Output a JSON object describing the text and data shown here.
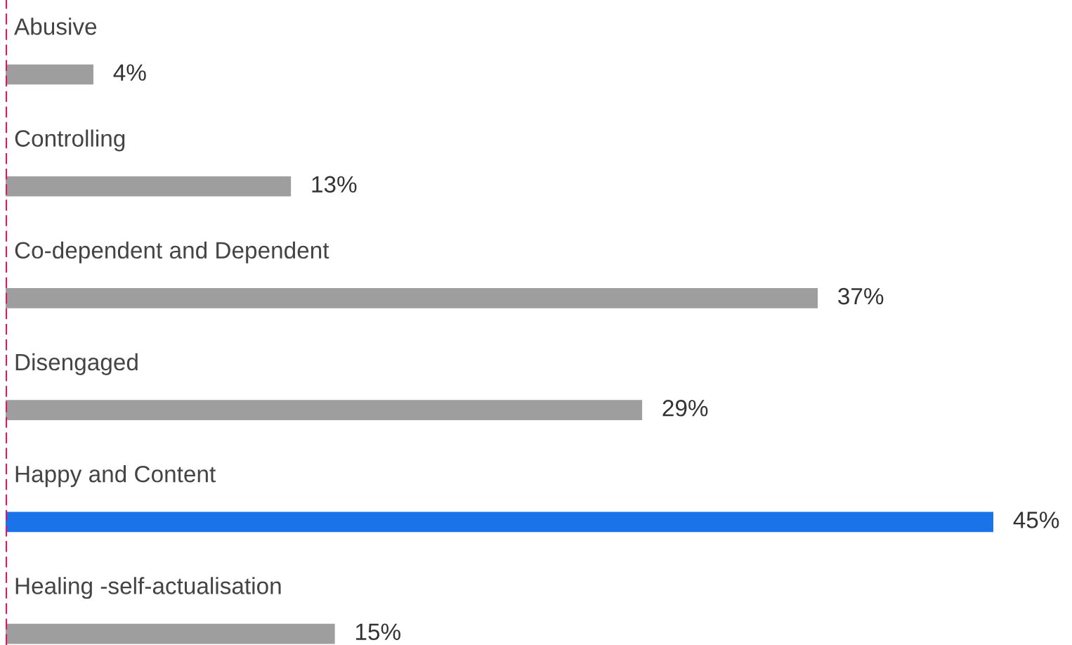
{
  "chart_data": {
    "type": "bar",
    "orientation": "horizontal",
    "categories": [
      "Abusive",
      "Controlling",
      "Co-dependent and Dependent",
      "Disengaged",
      "Happy and Content",
      "Healing -self-actualisation"
    ],
    "values": [
      4,
      13,
      37,
      29,
      45,
      15
    ],
    "colors": [
      "#9e9e9e",
      "#9e9e9e",
      "#9e9e9e",
      "#9e9e9e",
      "#1a73e8",
      "#9e9e9e"
    ],
    "value_labels": [
      "4%",
      "13%",
      "37%",
      "29%",
      "45%",
      "15%"
    ],
    "ref_lines": [
      {
        "axis": "x",
        "value": 0,
        "label": null,
        "color": "#d81b60",
        "line_style": "dashed"
      }
    ]
  }
}
